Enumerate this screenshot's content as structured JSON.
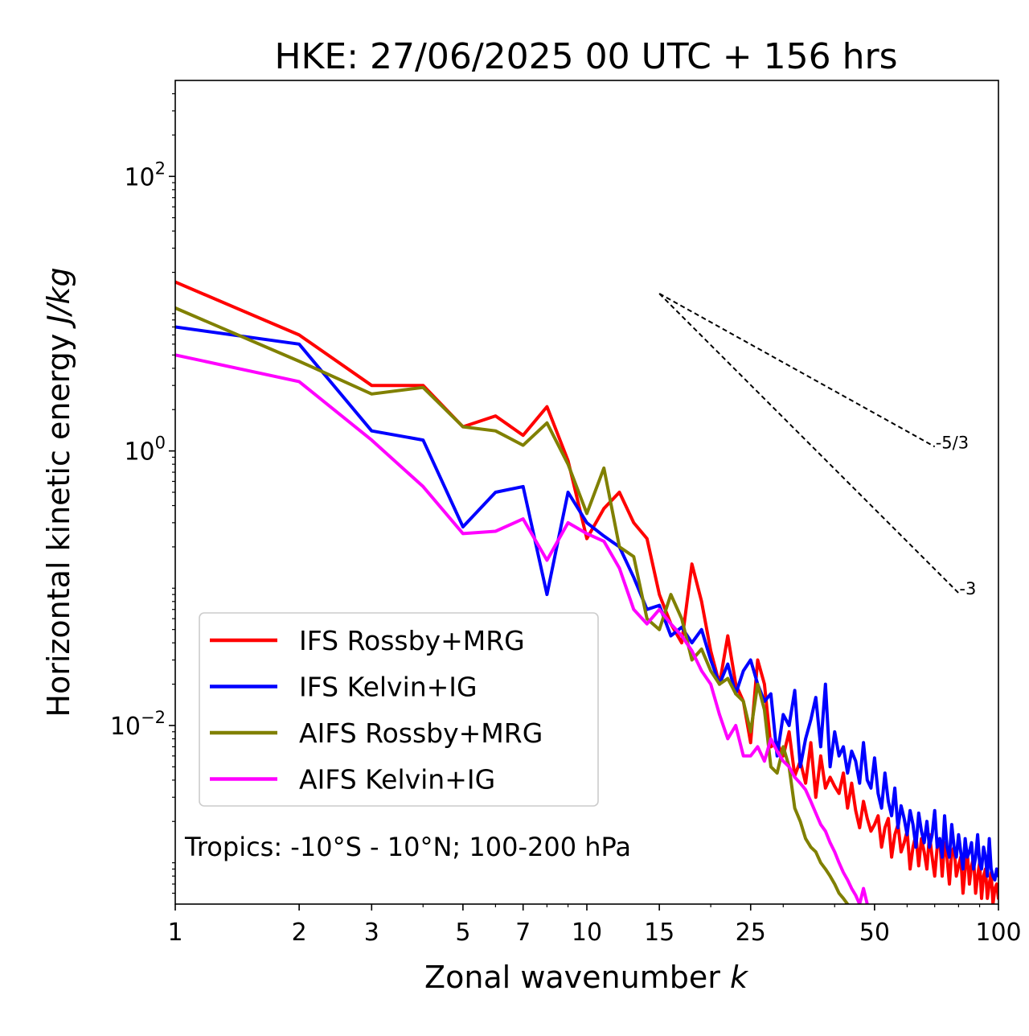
{
  "chart_data": {
    "type": "line",
    "title": "HKE: 27/06/2025 00 UTC + 156 hrs",
    "xlabel_text": "Zonal wavenumber ",
    "xlabel_var": "k",
    "ylabel_text": "Horizontal kinetic energy ",
    "ylabel_unit": "J/kg",
    "xscale": "log",
    "yscale": "log",
    "xlim": [
      1,
      100
    ],
    "ylim": [
      0.0005,
      500
    ],
    "x_ticks": [
      1,
      2,
      3,
      5,
      7,
      10,
      15,
      25,
      50,
      100
    ],
    "x_tick_labels": [
      "1",
      "2",
      "3",
      "5",
      "7",
      "10",
      "15",
      "25",
      "50",
      "100"
    ],
    "y_ticks": [
      1,
      100,
      0.01
    ],
    "y_tick_labels": [
      {
        "base": "10",
        "exp": "0"
      },
      {
        "base": "10",
        "exp": "2"
      },
      {
        "base": "10",
        "exp": "−2"
      }
    ],
    "annotation": "Tropics: -10°S - 10°N; 100-200 hPa",
    "legend_position": "lower-left",
    "reference_lines": [
      {
        "label": "-5/3",
        "slope": -1.6667,
        "x": [
          15,
          70
        ],
        "y0": 14
      },
      {
        "label": "-3",
        "slope": -3,
        "x": [
          15,
          80
        ],
        "y0": 14
      }
    ],
    "series": [
      {
        "name": "IFS Rossby+MRG",
        "color": "#ff0000",
        "x": [
          1,
          2,
          3,
          4,
          5,
          6,
          7,
          8,
          9,
          10,
          11,
          12,
          13,
          14,
          15,
          16,
          17,
          18,
          19,
          20,
          21,
          22,
          23,
          24,
          25,
          26,
          27,
          28,
          29,
          30,
          31,
          32,
          33,
          34,
          35,
          36,
          37,
          38,
          39,
          40,
          41,
          42,
          43,
          44,
          45,
          46,
          47,
          48,
          49,
          50,
          51,
          52,
          53,
          54,
          55,
          56,
          57,
          58,
          59,
          60,
          61,
          62,
          63,
          64,
          65,
          66,
          67,
          68,
          69,
          70,
          71,
          72,
          73,
          74,
          75,
          76,
          77,
          78,
          79,
          80,
          81,
          82,
          83,
          84,
          85,
          86,
          87,
          88,
          89,
          90,
          91,
          92,
          93,
          94,
          95,
          96,
          97,
          98,
          99,
          100
        ],
        "y": [
          17,
          7,
          3,
          3,
          1.5,
          1.8,
          1.3,
          2.1,
          0.85,
          0.23,
          0.38,
          0.5,
          0.3,
          0.23,
          0.09,
          0.055,
          0.04,
          0.15,
          0.08,
          0.035,
          0.02,
          0.045,
          0.02,
          0.015,
          0.0075,
          0.03,
          0.02,
          0.007,
          0.0075,
          0.006,
          0.009,
          0.0043,
          0.0055,
          0.0038,
          0.0075,
          0.003,
          0.006,
          0.0035,
          0.0042,
          0.0036,
          0.0032,
          0.0045,
          0.0025,
          0.0038,
          0.0024,
          0.0018,
          0.0028,
          0.0021,
          0.0017,
          0.0019,
          0.0022,
          0.0013,
          0.0018,
          0.0021,
          0.0011,
          0.0016,
          0.0019,
          0.0012,
          0.0014,
          0.0017,
          0.0009,
          0.0013,
          0.0016,
          0.00095,
          0.0015,
          0.0012,
          0.0009,
          0.0016,
          0.0011,
          0.0008,
          0.0013,
          0.0015,
          0.0008,
          0.0014,
          0.0011,
          0.0007,
          0.0012,
          0.0013,
          0.0008,
          0.00095,
          0.0011,
          0.0006,
          0.0009,
          0.0012,
          0.0007,
          0.00095,
          0.0011,
          0.0006,
          0.0008,
          0.001,
          0.00055,
          0.0008,
          0.0009,
          0.00055,
          0.0007,
          0.00085,
          0.0005,
          0.00065,
          0.0007,
          0.00055
        ]
      },
      {
        "name": "IFS Kelvin+IG",
        "color": "#0000ff",
        "x": [
          1,
          2,
          3,
          4,
          5,
          6,
          7,
          8,
          9,
          10,
          11,
          12,
          13,
          14,
          15,
          16,
          17,
          18,
          19,
          20,
          21,
          22,
          23,
          24,
          25,
          26,
          27,
          28,
          29,
          30,
          31,
          32,
          33,
          34,
          35,
          36,
          37,
          38,
          39,
          40,
          41,
          42,
          43,
          44,
          45,
          46,
          47,
          48,
          49,
          50,
          51,
          52,
          53,
          54,
          55,
          56,
          57,
          58,
          59,
          60,
          61,
          62,
          63,
          64,
          65,
          66,
          67,
          68,
          69,
          70,
          71,
          72,
          73,
          74,
          75,
          76,
          77,
          78,
          79,
          80,
          81,
          82,
          83,
          84,
          85,
          86,
          87,
          88,
          89,
          90,
          91,
          92,
          93,
          94,
          95,
          96,
          97,
          98,
          99,
          100
        ],
        "y": [
          8,
          6,
          1.4,
          1.2,
          0.28,
          0.5,
          0.55,
          0.09,
          0.5,
          0.3,
          0.24,
          0.2,
          0.12,
          0.07,
          0.075,
          0.045,
          0.052,
          0.04,
          0.05,
          0.03,
          0.02,
          0.028,
          0.017,
          0.025,
          0.03,
          0.02,
          0.015,
          0.017,
          0.006,
          0.012,
          0.01,
          0.018,
          0.005,
          0.008,
          0.011,
          0.016,
          0.007,
          0.02,
          0.005,
          0.009,
          0.006,
          0.007,
          0.0045,
          0.0065,
          0.0055,
          0.0038,
          0.0075,
          0.004,
          0.0035,
          0.0058,
          0.0032,
          0.0025,
          0.0045,
          0.0028,
          0.0022,
          0.0035,
          0.0018,
          0.0026,
          0.0021,
          0.0016,
          0.0024,
          0.0019,
          0.0013,
          0.0023,
          0.0017,
          0.0014,
          0.002,
          0.0013,
          0.0016,
          0.0024,
          0.0013,
          0.0015,
          0.0011,
          0.0022,
          0.0013,
          0.0011,
          0.0019,
          0.0013,
          0.0011,
          0.0016,
          0.0012,
          0.0009,
          0.0015,
          0.0011,
          0.0012,
          0.0014,
          0.0009,
          0.0011,
          0.0016,
          0.001,
          0.0009,
          0.0013,
          0.0011,
          0.0008,
          0.0015,
          0.0009,
          0.0008,
          0.00075,
          0.0009,
          0.0008
        ]
      },
      {
        "name": "AIFS Rossby+MRG",
        "color": "#808000",
        "x": [
          1,
          2,
          3,
          4,
          5,
          6,
          7,
          8,
          9,
          10,
          11,
          12,
          13,
          14,
          15,
          16,
          17,
          18,
          19,
          20,
          21,
          22,
          23,
          24,
          25,
          26,
          27,
          28,
          29,
          30,
          31,
          32,
          33,
          34,
          35,
          36,
          37,
          38,
          39,
          40,
          41,
          42,
          43,
          44,
          45,
          46,
          47,
          48,
          49,
          50
        ],
        "y": [
          11,
          4.5,
          2.6,
          2.9,
          1.5,
          1.4,
          1.1,
          1.6,
          0.8,
          0.35,
          0.75,
          0.2,
          0.17,
          0.06,
          0.05,
          0.09,
          0.06,
          0.03,
          0.036,
          0.025,
          0.02,
          0.022,
          0.017,
          0.015,
          0.009,
          0.02,
          0.013,
          0.005,
          0.0045,
          0.007,
          0.005,
          0.0025,
          0.002,
          0.0015,
          0.0013,
          0.0012,
          0.001,
          0.0009,
          0.0008,
          0.0007,
          0.0006,
          0.00055,
          0.0005,
          0.00045,
          0.0004,
          0.00035,
          0.0003,
          0.00025,
          0.0002,
          0.00015
        ]
      },
      {
        "name": "AIFS Kelvin+IG",
        "color": "#ff00ff",
        "x": [
          1,
          2,
          3,
          4,
          5,
          6,
          7,
          8,
          9,
          10,
          11,
          12,
          13,
          14,
          15,
          16,
          17,
          18,
          19,
          20,
          21,
          22,
          23,
          24,
          25,
          26,
          27,
          28,
          29,
          30,
          31,
          32,
          33,
          34,
          35,
          36,
          37,
          38,
          39,
          40,
          41,
          42,
          43,
          44,
          45,
          46,
          47,
          48,
          49,
          50,
          51,
          52,
          53,
          54,
          55
        ],
        "y": [
          5,
          3.2,
          1.2,
          0.55,
          0.25,
          0.26,
          0.32,
          0.16,
          0.3,
          0.25,
          0.22,
          0.14,
          0.07,
          0.055,
          0.07,
          0.055,
          0.045,
          0.035,
          0.025,
          0.02,
          0.012,
          0.008,
          0.01,
          0.006,
          0.006,
          0.007,
          0.0055,
          0.008,
          0.0065,
          0.0055,
          0.005,
          0.0042,
          0.0038,
          0.0034,
          0.0028,
          0.0023,
          0.0019,
          0.0017,
          0.0014,
          0.0012,
          0.001,
          0.00085,
          0.00075,
          0.00065,
          0.00058,
          0.0005,
          0.00065,
          0.0005,
          0.00043,
          0.00037,
          0.00032,
          0.00028,
          0.00025,
          0.00022,
          0.0002
        ]
      }
    ]
  }
}
